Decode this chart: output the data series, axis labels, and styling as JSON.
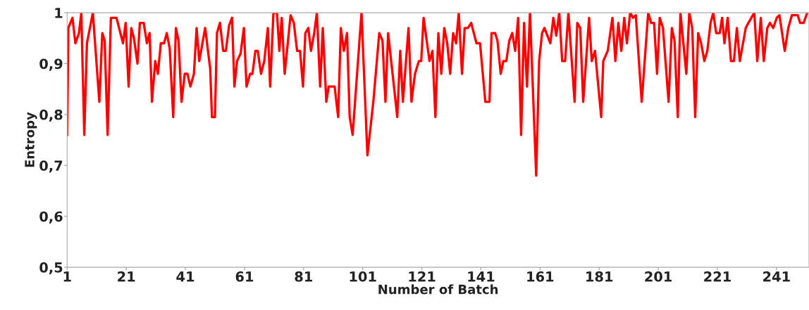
{
  "chart_data": {
    "type": "line",
    "xlabel": "Number of Batch",
    "ylabel": "Entropy",
    "x": [
      1.0,
      1.4,
      2.8,
      3.8,
      5.0,
      5.8,
      6.8,
      7.7,
      9.7,
      11.9,
      12.9,
      13.7,
      14.7,
      15.8,
      17.7,
      19.9,
      20.8,
      21.8,
      22.7,
      23.6,
      24.8,
      25.6,
      26.9,
      28.0,
      28.9,
      29.7,
      30.8,
      31.7,
      32.7,
      33.8,
      34.7,
      35.7,
      36.9,
      37.8,
      38.7,
      39.7,
      40.8,
      41.7,
      42.7,
      43.9,
      44.8,
      45.7,
      47.7,
      49.4,
      50.0,
      51.0,
      51.7,
      52.7,
      53.8,
      54.7,
      55.8,
      56.8,
      57.6,
      58.5,
      59.7,
      60.8,
      61.7,
      62.9,
      63.7,
      64.7,
      65.5,
      66.6,
      67.7,
      68.9,
      69.7,
      70.8,
      72.0,
      72.8,
      73.6,
      74.6,
      76.6,
      77.7,
      78.8,
      79.8,
      80.8,
      81.6,
      82.6,
      83.5,
      84.6,
      85.5,
      86.6,
      87.5,
      88.7,
      89.5,
      91.5,
      92.7,
      93.6,
      94.6,
      95.7,
      96.6,
      97.6,
      100.6,
      102.6,
      104.6,
      106.6,
      107.7,
      108.7,
      109.6,
      112.7,
      113.7,
      114.6,
      116.5,
      117.5,
      118.7,
      120.0,
      120.8,
      121.6,
      123.6,
      124.6,
      125.6,
      126.6,
      127.6,
      128.6,
      129.6,
      130.6,
      131.6,
      132.6,
      133.5,
      134.6,
      135.5,
      136.6,
      137.7,
      139.5,
      140.7,
      142.5,
      143.9,
      144.6,
      145.8,
      146.6,
      147.7,
      148.6,
      149.6,
      150.6,
      151.6,
      152.6,
      153.6,
      154.6,
      155.6,
      156.6,
      157.6,
      159.7,
      160.7,
      161.7,
      162.5,
      164.5,
      165.5,
      166.5,
      167.5,
      168.5,
      169.5,
      170.6,
      172.7,
      173.6,
      174.6,
      175.6,
      177.6,
      178.5,
      179.6,
      181.7,
      182.4,
      183.9,
      185.5,
      186.5,
      187.5,
      188.5,
      189.5,
      190.4,
      191.5,
      192.5,
      193.4,
      195.4,
      197.6,
      198.6,
      199.6,
      200.6,
      201.5,
      202.6,
      204.5,
      205.6,
      206.5,
      207.6,
      208.5,
      210.5,
      211.5,
      212.5,
      213.5,
      214.5,
      215.5,
      216.6,
      217.6,
      218.7,
      219.6,
      220.6,
      221.8,
      222.6,
      223.4,
      224.5,
      225.6,
      226.6,
      227.6,
      228.6,
      230.6,
      231.5,
      232.5,
      233.5,
      234.5,
      235.7,
      236.7,
      237.9,
      238.8,
      239.9,
      241.1,
      242.0,
      243.8,
      245.0,
      246.2,
      248.2,
      249.0,
      250.2,
      251.4
    ],
    "series": [
      {
        "color": "#ff0000",
        "values": [
          0.76,
          0.97,
          0.99,
          0.94,
          0.96,
          1.0,
          0.76,
          0.94,
          1.0,
          0.825,
          0.96,
          0.945,
          0.76,
          0.99,
          0.99,
          0.94,
          0.98,
          0.855,
          0.97,
          0.95,
          0.9,
          0.98,
          0.98,
          0.94,
          0.96,
          0.825,
          0.905,
          0.88,
          0.94,
          0.94,
          0.96,
          0.93,
          0.795,
          0.97,
          0.945,
          0.825,
          0.88,
          0.88,
          0.855,
          0.88,
          0.97,
          0.905,
          0.97,
          0.89,
          0.795,
          0.795,
          0.96,
          0.98,
          0.925,
          0.925,
          0.975,
          0.99,
          0.855,
          0.905,
          0.92,
          0.97,
          0.855,
          0.88,
          0.88,
          0.925,
          0.925,
          0.88,
          0.905,
          0.97,
          0.855,
          1.0,
          1.0,
          0.925,
          0.99,
          0.88,
          0.995,
          0.98,
          0.925,
          0.925,
          0.855,
          0.96,
          0.97,
          0.925,
          0.96,
          1.0,
          0.855,
          0.97,
          0.825,
          0.855,
          0.855,
          0.795,
          0.97,
          0.925,
          0.96,
          0.795,
          0.76,
          1.0,
          0.72,
          0.825,
          0.96,
          0.945,
          0.825,
          0.96,
          0.795,
          0.925,
          0.825,
          0.97,
          0.825,
          0.88,
          0.905,
          0.905,
          0.99,
          0.905,
          0.925,
          0.795,
          0.96,
          0.88,
          0.97,
          0.94,
          0.88,
          0.96,
          0.94,
          1.0,
          0.88,
          0.97,
          0.97,
          0.98,
          0.94,
          0.94,
          0.825,
          0.825,
          0.96,
          0.96,
          0.945,
          0.88,
          0.905,
          0.905,
          0.945,
          0.96,
          0.925,
          0.99,
          0.76,
          0.98,
          0.855,
          1.0,
          0.68,
          0.905,
          0.96,
          0.97,
          0.94,
          0.99,
          0.955,
          1.0,
          0.905,
          0.905,
          1.0,
          0.825,
          0.98,
          0.97,
          0.825,
          0.99,
          0.905,
          0.925,
          0.795,
          0.905,
          0.925,
          0.99,
          0.905,
          0.98,
          0.925,
          0.99,
          0.94,
          1.0,
          0.99,
          0.995,
          0.825,
          1.0,
          0.98,
          0.98,
          0.88,
          0.99,
          0.97,
          0.825,
          0.97,
          0.945,
          0.795,
          1.0,
          0.88,
          1.0,
          0.97,
          0.795,
          0.96,
          0.94,
          0.905,
          0.925,
          0.98,
          1.0,
          0.96,
          0.96,
          0.99,
          0.94,
          0.99,
          0.905,
          0.905,
          0.97,
          0.905,
          0.97,
          0.98,
          0.99,
          1.0,
          0.905,
          0.99,
          0.905,
          0.97,
          0.98,
          0.97,
          0.99,
          0.995,
          0.925,
          0.97,
          0.995,
          0.995,
          0.98,
          0.98,
          1.0
        ]
      }
    ],
    "xlim": [
      1,
      252
    ],
    "ylim": [
      0.5,
      1
    ],
    "xticks": [
      1,
      21,
      41,
      61,
      81,
      101,
      121,
      141,
      161,
      181,
      201,
      221,
      241
    ],
    "yticks": [
      {
        "value": 0.5,
        "label": "0,5"
      },
      {
        "value": 0.6,
        "label": "0,6"
      },
      {
        "value": 0.7,
        "label": "0,7"
      },
      {
        "value": 0.8,
        "label": "0,8"
      },
      {
        "value": 0.9,
        "label": "0,9"
      },
      {
        "value": 1,
        "label": "1"
      }
    ],
    "grid": false,
    "marker": "none",
    "line_style": "solid"
  }
}
